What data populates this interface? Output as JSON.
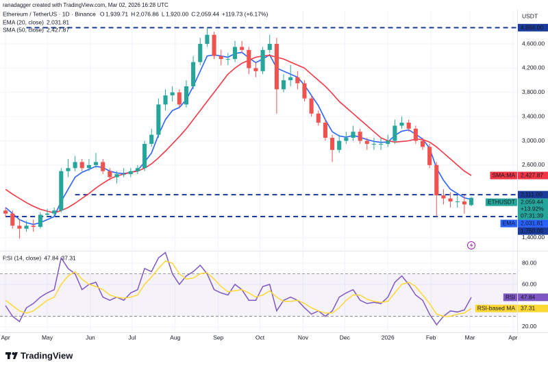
{
  "header": {
    "attribution": "ranadagger created with TradingView.com, Mar 02, 2026 16:28 UTC"
  },
  "footer": {
    "brand": "TradingView"
  },
  "chart_data": [
    {
      "type": "candlestick",
      "title": "Ethereum / TetherUS · 1D · Binance",
      "currency": "USDT",
      "legend_ohlc": [
        {
          "key": "O",
          "label": "1,939.71"
        },
        {
          "key": "H",
          "label": "2,076.86"
        },
        {
          "key": "L",
          "label": "1,920.00"
        },
        {
          "key": "C",
          "label": "2,059.44"
        }
      ],
      "change_label": "+119.73 (+6.17%)",
      "up_color": "#26a69a",
      "down_color": "#ef5350",
      "level_color": "#1a3a9c",
      "x": [
        0,
        5,
        10,
        15,
        20,
        25,
        30,
        35,
        40,
        45,
        50,
        55,
        60,
        65,
        70,
        75,
        80,
        85,
        90,
        95,
        100,
        105,
        110,
        115,
        120,
        125,
        130,
        135,
        140,
        145,
        150,
        155,
        160,
        165,
        170,
        175,
        180,
        185,
        190,
        195,
        200,
        205,
        210,
        215,
        220,
        225,
        230,
        235,
        240,
        245,
        250,
        255,
        260,
        265,
        270,
        275,
        280,
        285,
        290,
        295,
        300,
        305,
        310,
        315,
        320,
        325,
        330,
        335
      ],
      "open": [
        1850,
        1800,
        1600,
        1550,
        1600,
        1580,
        1780,
        1800,
        1850,
        2500,
        2550,
        2650,
        2550,
        2600,
        2650,
        2500,
        2400,
        2450,
        2450,
        2500,
        2550,
        2950,
        3100,
        3600,
        3750,
        3800,
        3600,
        3900,
        4300,
        4600,
        4750,
        4400,
        4350,
        4350,
        4550,
        4500,
        4200,
        4150,
        4500,
        4600,
        3850,
        4000,
        4050,
        3950,
        3700,
        3450,
        3300,
        3050,
        2850,
        3000,
        3050,
        3150,
        3000,
        2950,
        2950,
        2950,
        3000,
        3250,
        3300,
        3200,
        3000,
        2900,
        2600,
        2100,
        2050,
        2000,
        2000,
        1939.71
      ],
      "high": [
        1900,
        1850,
        1700,
        1680,
        1700,
        1820,
        1880,
        1900,
        2550,
        2700,
        2750,
        2700,
        2700,
        2800,
        2700,
        2550,
        2500,
        2550,
        2550,
        2600,
        3000,
        3200,
        3700,
        3850,
        3900,
        3850,
        4000,
        4400,
        4700,
        4868,
        4800,
        4500,
        4450,
        4650,
        4650,
        4550,
        4300,
        4550,
        4750,
        4700,
        4100,
        4250,
        4150,
        4000,
        3750,
        3500,
        3350,
        3100,
        3100,
        3150,
        3250,
        3200,
        3050,
        3050,
        3050,
        3100,
        3350,
        3400,
        3350,
        3250,
        3050,
        2950,
        2650,
        2200,
        2150,
        2100,
        2100,
        2076.86
      ],
      "low": [
        1750,
        1550,
        1385,
        1500,
        1500,
        1550,
        1750,
        1770,
        1820,
        2400,
        2500,
        2500,
        2500,
        2550,
        2450,
        2350,
        2300,
        2400,
        2400,
        2450,
        2500,
        2900,
        3050,
        3500,
        3650,
        3550,
        3550,
        3850,
        4250,
        4550,
        4350,
        4250,
        4250,
        4300,
        4450,
        4100,
        4050,
        4100,
        4450,
        3450,
        3800,
        3900,
        3850,
        3650,
        3400,
        3250,
        3000,
        2650,
        2800,
        2950,
        3000,
        2950,
        2850,
        2850,
        2850,
        2900,
        2950,
        3200,
        3150,
        2950,
        2850,
        2550,
        1750,
        1950,
        1900,
        1900,
        1800,
        1920
      ],
      "close": [
        1800,
        1600,
        1550,
        1600,
        1580,
        1780,
        1800,
        1850,
        2500,
        2550,
        2650,
        2550,
        2600,
        2650,
        2500,
        2400,
        2450,
        2450,
        2500,
        2550,
        2950,
        3100,
        3600,
        3750,
        3800,
        3600,
        3900,
        4300,
        4600,
        4750,
        4400,
        4350,
        4350,
        4550,
        4500,
        4200,
        4150,
        4500,
        4600,
        3850,
        4000,
        4050,
        3950,
        3700,
        3450,
        3300,
        3050,
        2850,
        3000,
        3050,
        3150,
        3000,
        2950,
        2950,
        2950,
        3000,
        3250,
        3300,
        3200,
        3000,
        2900,
        2600,
        2100,
        2050,
        2000,
        2000,
        1950,
        2059.44
      ],
      "series": [
        {
          "name": "EMA (20, close)",
          "tag": "EMA",
          "last_label": "2,031.81",
          "color": "#2962ff",
          "values": [
            1900,
            1800,
            1700,
            1650,
            1620,
            1650,
            1700,
            1750,
            2000,
            2200,
            2400,
            2480,
            2530,
            2580,
            2560,
            2500,
            2470,
            2460,
            2480,
            2510,
            2650,
            2800,
            3100,
            3350,
            3500,
            3550,
            3680,
            3900,
            4150,
            4400,
            4420,
            4400,
            4380,
            4440,
            4460,
            4370,
            4290,
            4350,
            4420,
            4200,
            4150,
            4100,
            4050,
            3920,
            3750,
            3580,
            3350,
            3150,
            3080,
            3060,
            3090,
            3060,
            3020,
            2990,
            2975,
            2980,
            3090,
            3160,
            3180,
            3110,
            3030,
            2880,
            2550,
            2350,
            2200,
            2130,
            2060,
            2031.81
          ]
        },
        {
          "name": "SMA (50, close)",
          "tag": "SMA:MA",
          "last_label": "2,427.87",
          "color": "#f23645",
          "values": [
            2200,
            2120,
            2050,
            1980,
            1920,
            1870,
            1840,
            1810,
            1850,
            1900,
            1970,
            2050,
            2130,
            2220,
            2300,
            2370,
            2420,
            2450,
            2480,
            2500,
            2550,
            2620,
            2720,
            2830,
            2950,
            3070,
            3200,
            3350,
            3500,
            3650,
            3800,
            3950,
            4100,
            4200,
            4280,
            4330,
            4380,
            4400,
            4410,
            4380,
            4350,
            4300,
            4250,
            4200,
            4100,
            4000,
            3900,
            3780,
            3650,
            3550,
            3450,
            3350,
            3250,
            3150,
            3050,
            3000,
            2980,
            2990,
            3000,
            3030,
            3020,
            2980,
            2900,
            2800,
            2700,
            2600,
            2500,
            2427.87
          ]
        }
      ],
      "last": {
        "name": "ETHUSDT",
        "label": "2,059.44",
        "change": "+13.92%",
        "countdown": "07:31:39"
      },
      "levels": [
        {
          "value": 4868,
          "label": "4,868.00",
          "x0": 15
        },
        {
          "value": 2111,
          "label": "2,111.00",
          "x0": 50
        },
        {
          "value": 1750,
          "label": "1,750.00",
          "x0": 0
        }
      ],
      "xlim": [
        -4,
        368
      ],
      "xticks": [
        {
          "value": 0,
          "label": "Apr"
        },
        {
          "value": 30,
          "label": "May"
        },
        {
          "value": 61,
          "label": "Jun"
        },
        {
          "value": 91,
          "label": "Jul"
        },
        {
          "value": 122,
          "label": "Aug"
        },
        {
          "value": 153,
          "label": "Sep"
        },
        {
          "value": 183,
          "label": "Oct"
        },
        {
          "value": 214,
          "label": "Nov"
        },
        {
          "value": 244,
          "label": "Dec"
        },
        {
          "value": 275,
          "label": "2026"
        },
        {
          "value": 306,
          "label": "Feb"
        },
        {
          "value": 334,
          "label": "Mar"
        },
        {
          "value": 365,
          "label": "Apr"
        }
      ],
      "ylim": [
        1185,
        4985
      ],
      "yticks": [
        {
          "value": 1400,
          "label": "1,400.00"
        },
        {
          "value": 2600,
          "label": "2,600.00"
        },
        {
          "value": 3000,
          "label": "3,000.00"
        },
        {
          "value": 3400,
          "label": "3,400.00"
        },
        {
          "value": 3800,
          "label": "3,800.00"
        },
        {
          "value": 4200,
          "label": "4,200.00"
        },
        {
          "value": 4600,
          "label": "4,600.00"
        }
      ],
      "grid": true
    },
    {
      "type": "line",
      "title": "RSI (14, close)",
      "x": [
        0,
        5,
        10,
        15,
        20,
        25,
        30,
        35,
        40,
        45,
        50,
        55,
        60,
        65,
        70,
        75,
        80,
        85,
        90,
        95,
        100,
        105,
        110,
        115,
        120,
        125,
        130,
        135,
        140,
        145,
        150,
        155,
        160,
        165,
        170,
        175,
        180,
        185,
        190,
        195,
        200,
        205,
        210,
        215,
        220,
        225,
        230,
        235,
        240,
        245,
        250,
        255,
        260,
        265,
        270,
        275,
        280,
        285,
        290,
        295,
        300,
        305,
        310,
        315,
        320,
        325,
        330,
        335
      ],
      "series": [
        {
          "name": "RSI",
          "last_label": "47.84",
          "color": "#7e57c2",
          "values": [
            40,
            30,
            25,
            38,
            42,
            48,
            52,
            55,
            85,
            75,
            70,
            55,
            60,
            62,
            48,
            45,
            48,
            45,
            52,
            55,
            75,
            72,
            85,
            90,
            70,
            60,
            68,
            72,
            78,
            70,
            55,
            52,
            50,
            60,
            55,
            45,
            45,
            58,
            60,
            35,
            45,
            48,
            45,
            38,
            32,
            35,
            30,
            35,
            48,
            52,
            55,
            45,
            42,
            43,
            42,
            48,
            62,
            68,
            60,
            50,
            45,
            32,
            22,
            30,
            35,
            34,
            36,
            47.84
          ]
        },
        {
          "name": "RSI-based MA",
          "last_label": "37.31",
          "color": "#fdd835",
          "values": [
            45,
            40,
            35,
            33,
            35,
            40,
            45,
            48,
            60,
            68,
            72,
            65,
            60,
            58,
            55,
            50,
            48,
            47,
            48,
            50,
            60,
            67,
            75,
            82,
            80,
            70,
            65,
            66,
            70,
            71,
            65,
            58,
            53,
            54,
            55,
            52,
            48,
            50,
            54,
            48,
            44,
            44,
            45,
            42,
            38,
            35,
            33,
            33,
            38,
            45,
            50,
            50,
            46,
            44,
            43,
            44,
            52,
            60,
            62,
            58,
            50,
            42,
            32,
            30,
            30,
            32,
            33,
            37.31
          ]
        }
      ],
      "band": [
        30,
        70
      ],
      "xlim": [
        -4,
        368
      ],
      "ylim": [
        14.8,
        91
      ],
      "yticks": [
        {
          "value": 20,
          "label": "20.00"
        },
        {
          "value": 60,
          "label": "60.00"
        },
        {
          "value": 80,
          "label": "80.00"
        }
      ]
    }
  ]
}
